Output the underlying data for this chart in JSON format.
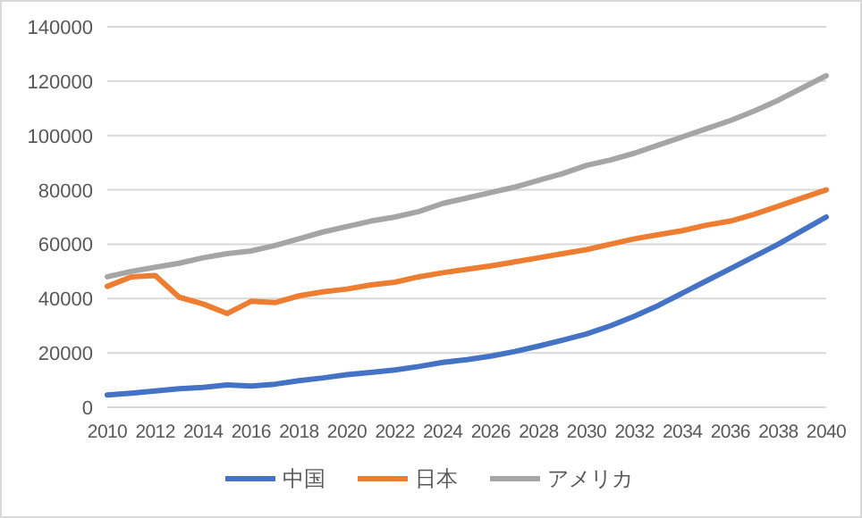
{
  "chart_data": {
    "type": "line",
    "categories": [
      "2010",
      null,
      "2012",
      null,
      "2014",
      null,
      "2016",
      null,
      "2018",
      null,
      "2020",
      null,
      "2022",
      null,
      "2024",
      null,
      "2026",
      null,
      "2028",
      null,
      "2030",
      null,
      "2032",
      null,
      "2034",
      null,
      "2036",
      null,
      "2038",
      null,
      "2040"
    ],
    "series": [
      {
        "name": "中国",
        "color": "#4472c4",
        "values": [
          4500,
          5200,
          6000,
          6800,
          7300,
          8200,
          7800,
          8500,
          9800,
          10800,
          12000,
          12800,
          13700,
          15000,
          16500,
          17500,
          18800,
          20500,
          22500,
          24700,
          27000,
          30000,
          33500,
          37500,
          42000,
          46500,
          51000,
          55500,
          60000,
          65000,
          70000
        ]
      },
      {
        "name": "日本",
        "color": "#ed7d31",
        "values": [
          44500,
          48000,
          48500,
          40500,
          38000,
          34500,
          39000,
          38500,
          41000,
          42500,
          43500,
          45000,
          46000,
          48000,
          49500,
          50800,
          52000,
          53500,
          55000,
          56500,
          58000,
          60000,
          62000,
          63500,
          65000,
          67000,
          68500,
          71000,
          74000,
          77000,
          80000
        ]
      },
      {
        "name": "アメリカ",
        "color": "#a5a5a5",
        "values": [
          48000,
          50000,
          51500,
          53000,
          55000,
          56500,
          57500,
          59500,
          62000,
          64500,
          66500,
          68500,
          70000,
          72000,
          75000,
          77000,
          79000,
          81000,
          83500,
          86000,
          89000,
          91000,
          93500,
          96500,
          99500,
          102500,
          105500,
          109000,
          113000,
          117500,
          122000
        ]
      }
    ],
    "ylim": [
      0,
      140000
    ],
    "yticks": [
      0,
      20000,
      40000,
      60000,
      80000,
      100000,
      120000,
      140000
    ],
    "grid": "y",
    "legend": "bottom"
  }
}
